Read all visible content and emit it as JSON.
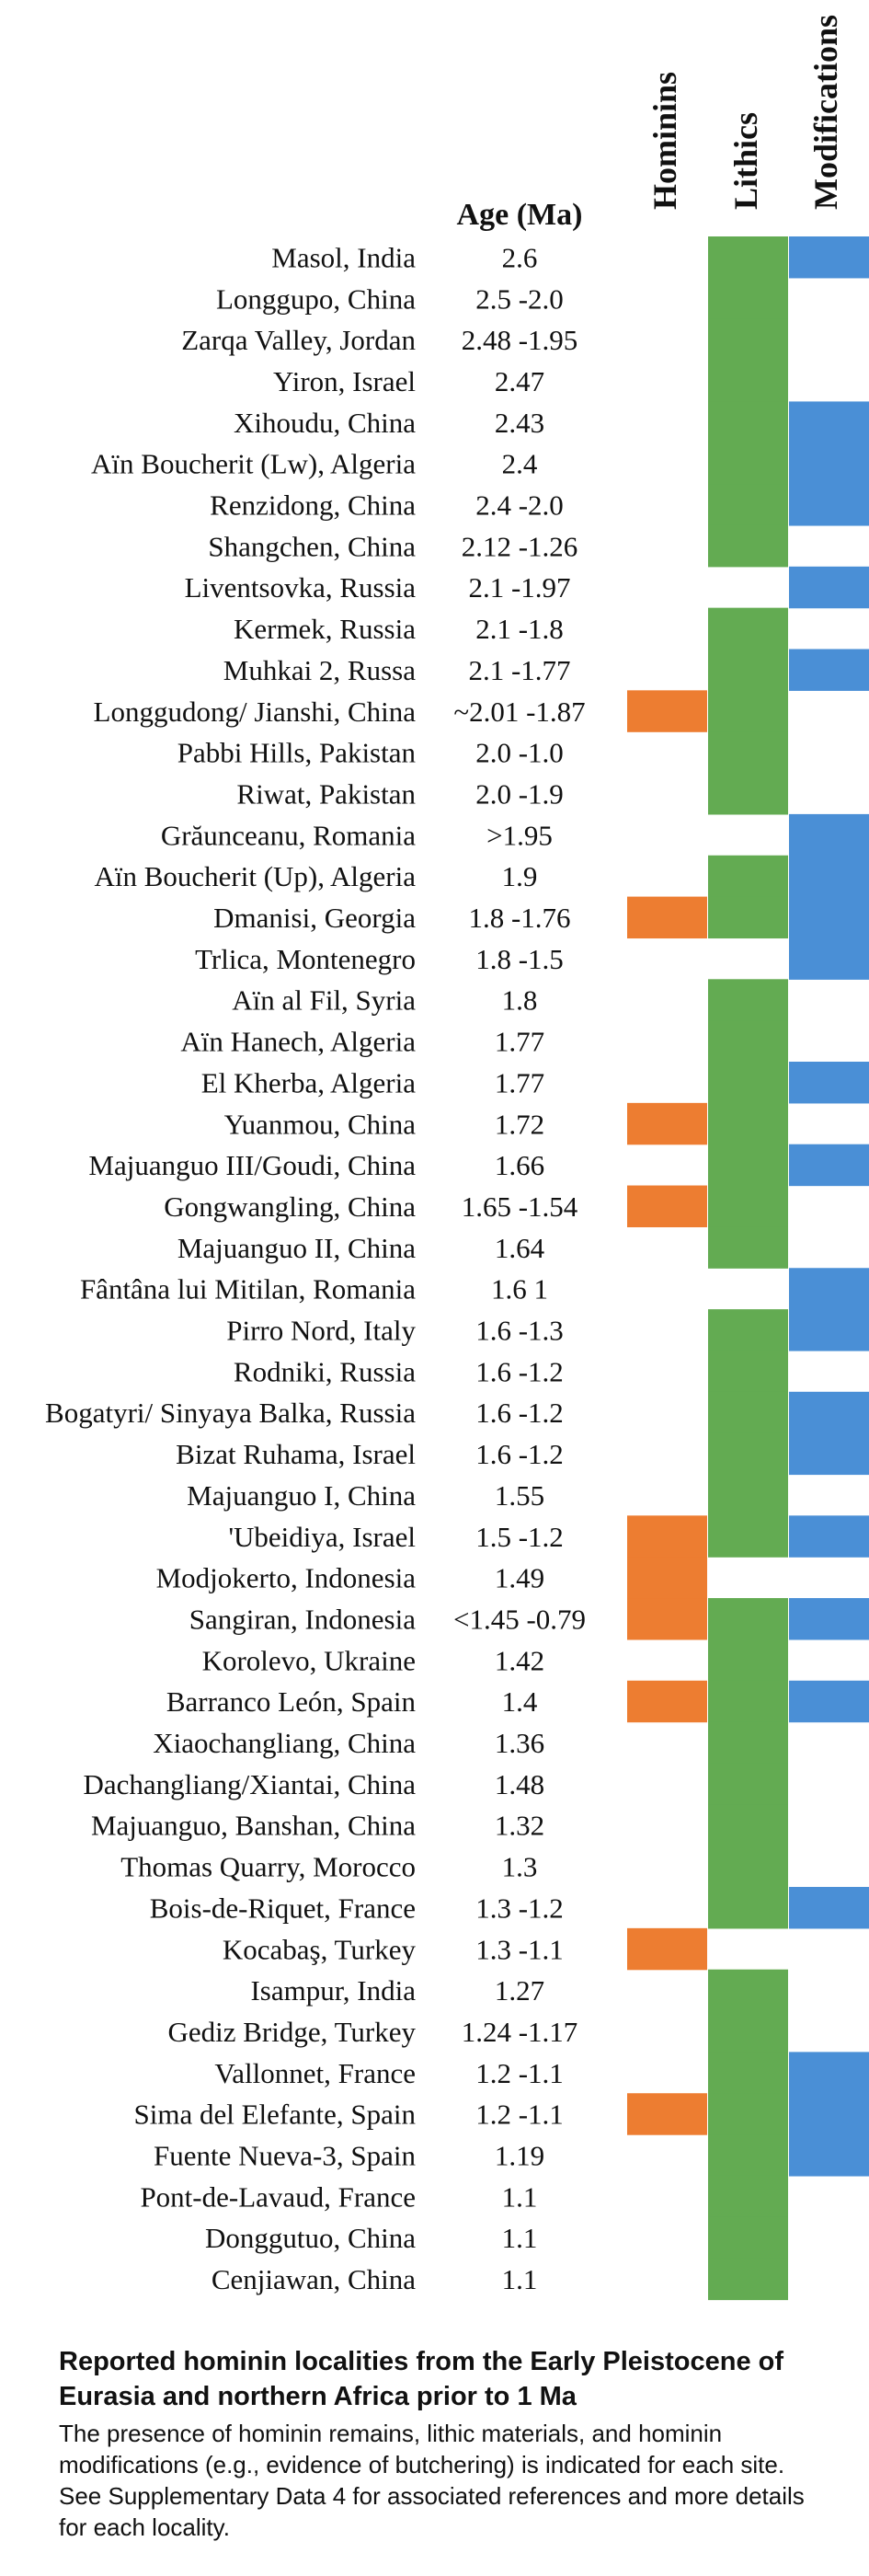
{
  "chart_data": {
    "type": "table",
    "columns": {
      "age": "Age (Ma)",
      "flags": [
        "Hominins",
        "Lithics",
        "Modifications"
      ]
    },
    "colors": {
      "hominins": "#ED7D31",
      "lithics": "#63AB52",
      "modifications": "#4A8FD6"
    },
    "rows": [
      {
        "site": "Masol, India",
        "age": "2.6",
        "hominins": false,
        "lithics": true,
        "modifications": true
      },
      {
        "site": "Longgupo, China",
        "age": "2.5 -2.0",
        "hominins": false,
        "lithics": true,
        "modifications": false
      },
      {
        "site": "Zarqa Valley, Jordan",
        "age": "2.48 -1.95",
        "hominins": false,
        "lithics": true,
        "modifications": false
      },
      {
        "site": "Yiron, Israel",
        "age": "2.47",
        "hominins": false,
        "lithics": true,
        "modifications": false
      },
      {
        "site": "Xihoudu, China",
        "age": "2.43",
        "hominins": false,
        "lithics": true,
        "modifications": true
      },
      {
        "site": "Aïn Boucherit (Lw), Algeria",
        "age": "2.4",
        "hominins": false,
        "lithics": true,
        "modifications": true
      },
      {
        "site": "Renzidong, China",
        "age": "2.4 -2.0",
        "hominins": false,
        "lithics": true,
        "modifications": true
      },
      {
        "site": "Shangchen, China",
        "age": "2.12 -1.26",
        "hominins": false,
        "lithics": true,
        "modifications": false
      },
      {
        "site": "Liventsovka, Russia",
        "age": "2.1 -1.97",
        "hominins": false,
        "lithics": false,
        "modifications": true
      },
      {
        "site": "Kermek, Russia",
        "age": "2.1 -1.8",
        "hominins": false,
        "lithics": true,
        "modifications": false
      },
      {
        "site": "Muhkai 2, Russa",
        "age": "2.1 -1.77",
        "hominins": false,
        "lithics": true,
        "modifications": true
      },
      {
        "site": "Longgudong/ Jianshi, China",
        "age": "~2.01 -1.87",
        "hominins": true,
        "lithics": true,
        "modifications": false
      },
      {
        "site": "Pabbi Hills, Pakistan",
        "age": "2.0 -1.0",
        "hominins": false,
        "lithics": true,
        "modifications": false
      },
      {
        "site": "Riwat, Pakistan",
        "age": "2.0 -1.9",
        "hominins": false,
        "lithics": true,
        "modifications": false
      },
      {
        "site": "Grăunceanu, Romania",
        "age": ">1.95",
        "hominins": false,
        "lithics": false,
        "modifications": true
      },
      {
        "site": "Aïn Boucherit (Up), Algeria",
        "age": "1.9",
        "hominins": false,
        "lithics": true,
        "modifications": true
      },
      {
        "site": "Dmanisi, Georgia",
        "age": "1.8 -1.76",
        "hominins": true,
        "lithics": true,
        "modifications": true
      },
      {
        "site": "Trlica, Montenegro",
        "age": "1.8 -1.5",
        "hominins": false,
        "lithics": false,
        "modifications": true
      },
      {
        "site": "Aïn al Fil, Syria",
        "age": "1.8",
        "hominins": false,
        "lithics": true,
        "modifications": false
      },
      {
        "site": "Aïn Hanech, Algeria",
        "age": "1.77",
        "hominins": false,
        "lithics": true,
        "modifications": false
      },
      {
        "site": "El Kherba, Algeria",
        "age": "1.77",
        "hominins": false,
        "lithics": true,
        "modifications": true
      },
      {
        "site": "Yuanmou, China",
        "age": "1.72",
        "hominins": true,
        "lithics": true,
        "modifications": false
      },
      {
        "site": "Majuanguo III/Goudi, China",
        "age": "1.66",
        "hominins": false,
        "lithics": true,
        "modifications": true
      },
      {
        "site": "Gongwangling, China",
        "age": "1.65 -1.54",
        "hominins": true,
        "lithics": true,
        "modifications": false
      },
      {
        "site": "Majuanguo II, China",
        "age": "1.64",
        "hominins": false,
        "lithics": true,
        "modifications": false
      },
      {
        "site": "Fântâna lui Mitilan, Romania",
        "age": "1.6 1",
        "hominins": false,
        "lithics": false,
        "modifications": true
      },
      {
        "site": "Pirro Nord, Italy",
        "age": "1.6 -1.3",
        "hominins": false,
        "lithics": true,
        "modifications": true
      },
      {
        "site": "Rodniki, Russia",
        "age": "1.6 -1.2",
        "hominins": false,
        "lithics": true,
        "modifications": false
      },
      {
        "site": "Bogatyri/ Sinyaya Balka, Russia",
        "age": "1.6 -1.2",
        "hominins": false,
        "lithics": true,
        "modifications": true
      },
      {
        "site": "Bizat Ruhama, Israel",
        "age": "1.6 -1.2",
        "hominins": false,
        "lithics": true,
        "modifications": true
      },
      {
        "site": "Majuanguo I, China",
        "age": "1.55",
        "hominins": false,
        "lithics": true,
        "modifications": false
      },
      {
        "site": "'Ubeidiya, Israel",
        "age": "1.5 -1.2",
        "hominins": true,
        "lithics": true,
        "modifications": true
      },
      {
        "site": "Modjokerto, Indonesia",
        "age": "1.49",
        "hominins": true,
        "lithics": false,
        "modifications": false
      },
      {
        "site": "Sangiran, Indonesia",
        "age": "<1.45 -0.79",
        "hominins": true,
        "lithics": true,
        "modifications": true
      },
      {
        "site": "Korolevo, Ukraine",
        "age": "1.42",
        "hominins": false,
        "lithics": true,
        "modifications": false
      },
      {
        "site": "Barranco León, Spain",
        "age": "1.4",
        "hominins": true,
        "lithics": true,
        "modifications": true
      },
      {
        "site": "Xiaochangliang, China",
        "age": "1.36",
        "hominins": false,
        "lithics": true,
        "modifications": false
      },
      {
        "site": "Dachangliang/Xiantai, China",
        "age": "1.48",
        "hominins": false,
        "lithics": true,
        "modifications": false
      },
      {
        "site": "Majuanguo, Banshan, China",
        "age": "1.32",
        "hominins": false,
        "lithics": true,
        "modifications": false
      },
      {
        "site": "Thomas Quarry, Morocco",
        "age": "1.3",
        "hominins": false,
        "lithics": true,
        "modifications": false
      },
      {
        "site": "Bois-de-Riquet, France",
        "age": "1.3 -1.2",
        "hominins": false,
        "lithics": true,
        "modifications": true
      },
      {
        "site": "Kocabaş, Turkey",
        "age": "1.3 -1.1",
        "hominins": true,
        "lithics": false,
        "modifications": false
      },
      {
        "site": "Isampur, India",
        "age": "1.27",
        "hominins": false,
        "lithics": true,
        "modifications": false
      },
      {
        "site": "Gediz Bridge, Turkey",
        "age": "1.24 -1.17",
        "hominins": false,
        "lithics": true,
        "modifications": false
      },
      {
        "site": "Vallonnet, France",
        "age": "1.2 -1.1",
        "hominins": false,
        "lithics": true,
        "modifications": true
      },
      {
        "site": "Sima del Elefante, Spain",
        "age": "1.2 -1.1",
        "hominins": true,
        "lithics": true,
        "modifications": true
      },
      {
        "site": "Fuente Nueva-3, Spain",
        "age": "1.19",
        "hominins": false,
        "lithics": true,
        "modifications": true
      },
      {
        "site": "Pont-de-Lavaud, France",
        "age": "1.1",
        "hominins": false,
        "lithics": true,
        "modifications": false
      },
      {
        "site": "Donggutuo, China",
        "age": "1.1",
        "hominins": false,
        "lithics": true,
        "modifications": false
      },
      {
        "site": "Cenjiawan, China",
        "age": "1.1",
        "hominins": false,
        "lithics": true,
        "modifications": false
      }
    ]
  },
  "caption": {
    "title": "Reported hominin localities from the Early Pleistocene of Eurasia and northern Africa prior to 1 Ma",
    "body": "The presence of hominin remains, lithic materials, and hominin modifications (e.g., evidence of butchering) is indicated for each site. See Supplementary Data 4 for associated references and more details for each locality."
  }
}
